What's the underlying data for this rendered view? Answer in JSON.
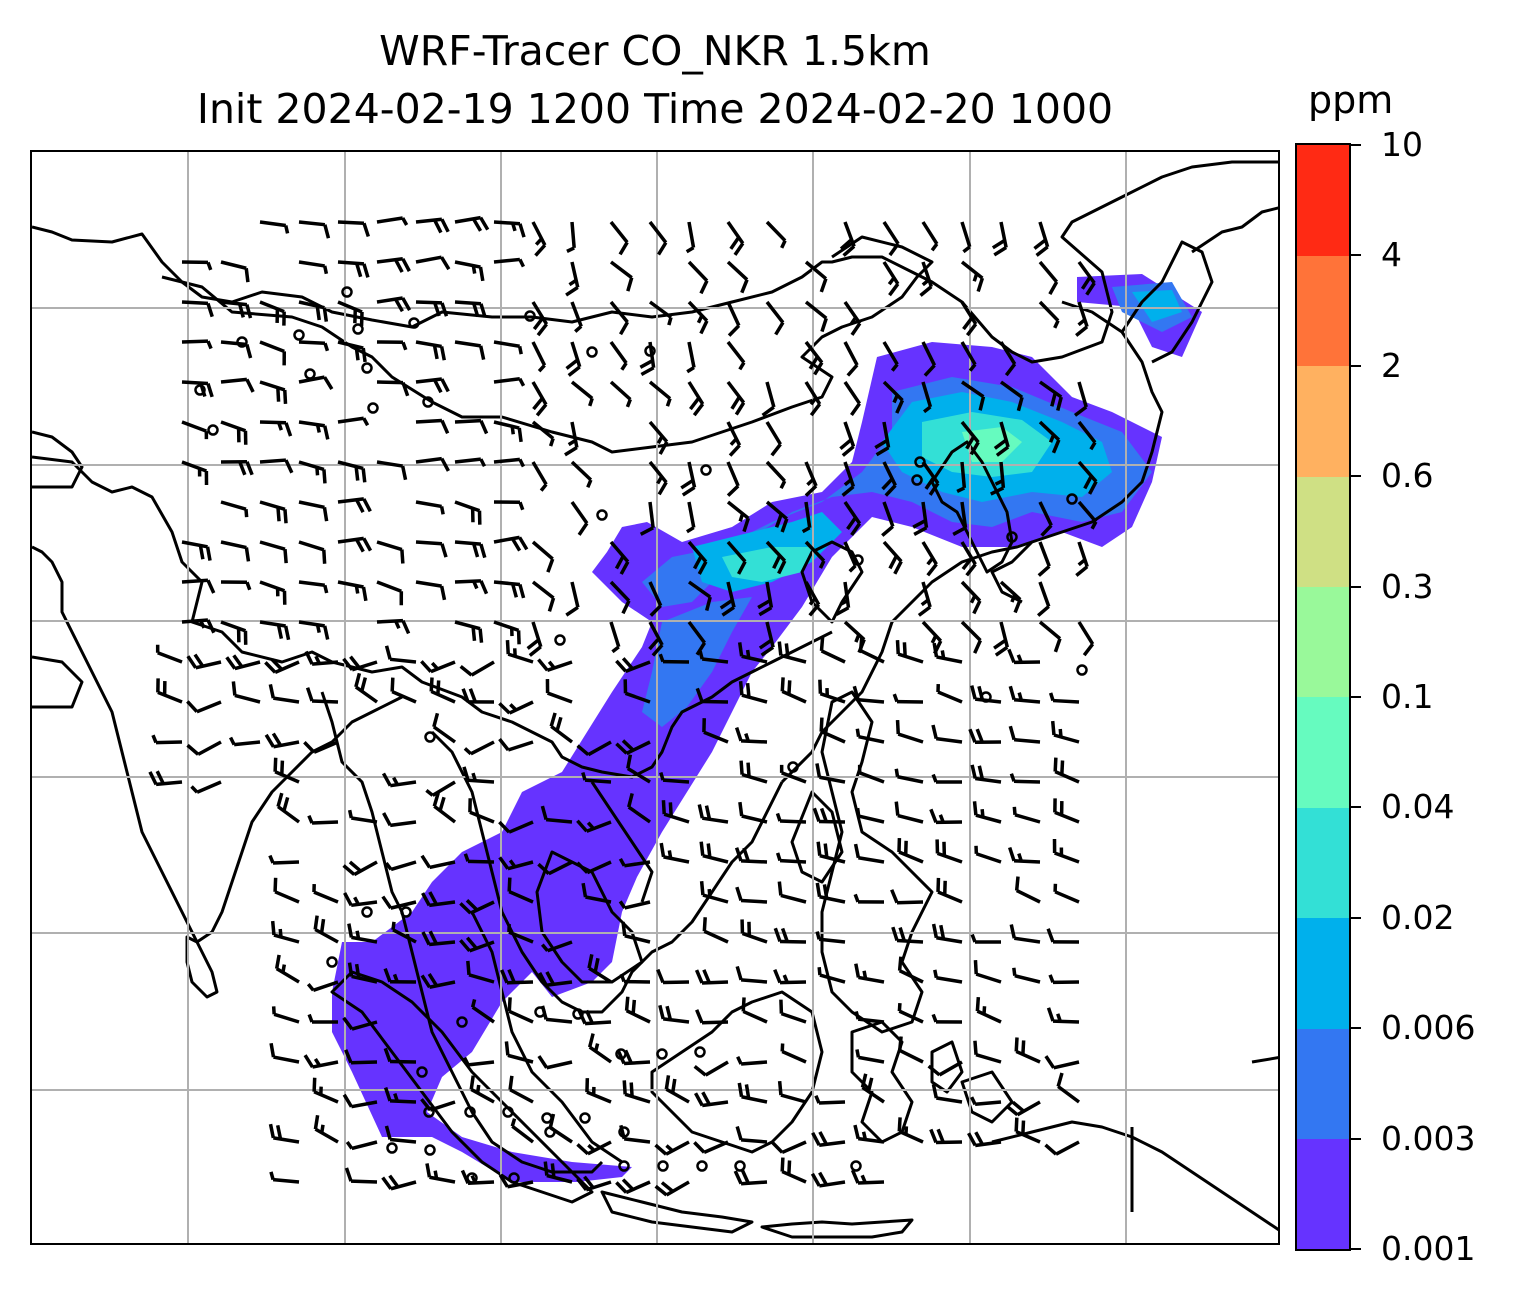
{
  "title": {
    "line1": "WRF-Tracer CO_NKR 1.5km",
    "line2": "Init 2024-02-19 1200 Time 2024-02-20 1000"
  },
  "colorbar": {
    "unit": "ppm",
    "levels": [
      "0.001",
      "0.003",
      "0.006",
      "0.02",
      "0.04",
      "0.1",
      "0.3",
      "0.6",
      "2",
      "4",
      "10"
    ],
    "colors": [
      "#6633ff",
      "#3377f2",
      "#00b0ec",
      "#33e0d6",
      "#66fbbf",
      "#99f99a",
      "#cfe084",
      "#ffb160",
      "#ff7339",
      "#ff2a14"
    ]
  },
  "map": {
    "projection": "lat-lon",
    "gridlines": true,
    "coastlines": true,
    "wind_barbs": true,
    "calm_marker": "circle",
    "plume_region": "North China / Korea / Japan through South China to Indochina, Gulf of Thailand and Malay Peninsula"
  }
}
